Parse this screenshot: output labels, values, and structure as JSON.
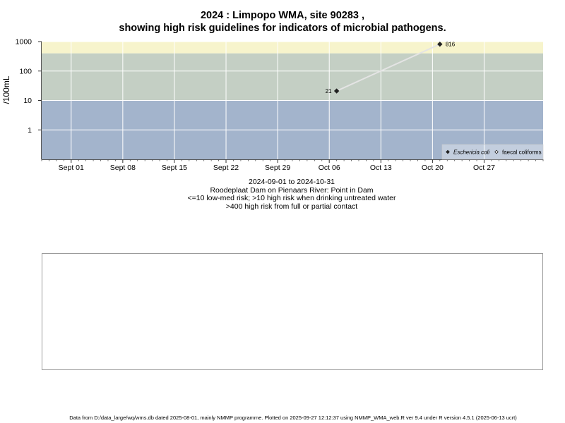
{
  "page": {
    "title_line1": "2024 : Limpopo WMA, site 90283 ,",
    "title_line2": "showing high risk guidelines for indicators of microbial pathogens.",
    "caption": [
      "2024-09-01 to 2024-10-31",
      "Roodeplaat Dam on Pienaars River: Point in Dam",
      "<=10 low-med risk; >10 high risk when drinking untreated water",
      ">400 high risk from full or partial contact"
    ],
    "footer": "Data from D:/data_large/wq/wms.db dated 2025-08-01, mainly NMMP programme. Plotted on 2025-09-27 12:12:37 using NMMP_WMA_web.R ver 9.4 under R version 4.5.1 (2025-06-13 ucrt)"
  },
  "chart_data": [
    {
      "type": "scatter",
      "ylabel": "/100mL",
      "y_scale": "log",
      "ylim": [
        0.1,
        1000
      ],
      "y_ticks": [
        1,
        10,
        100,
        1000
      ],
      "y_tick_labels": [
        "1",
        "10",
        "100",
        "1000"
      ],
      "xlim": [
        "2024-08-28",
        "2024-11-04"
      ],
      "x_ticks": [
        "2024-09-01",
        "2024-09-08",
        "2024-09-15",
        "2024-09-22",
        "2024-09-29",
        "2024-10-06",
        "2024-10-13",
        "2024-10-20",
        "2024-10-27"
      ],
      "x_tick_labels": [
        "Sept 01",
        "Sept 08",
        "Sept 15",
        "Sept 22",
        "Sept 29",
        "Oct 06",
        "Oct 13",
        "Oct 20",
        "Oct 27"
      ],
      "grid": true,
      "bands": [
        {
          "from": 0.1,
          "to": 10,
          "color": "#a3b4cc"
        },
        {
          "from": 10,
          "to": 400,
          "color": "#c4cfc4"
        },
        {
          "from": 400,
          "to": 1000,
          "color": "#f7f4cc"
        }
      ],
      "series": [
        {
          "name": "Eschericia coli",
          "marker": "filled-diamond",
          "color": "#222222",
          "points": [
            {
              "x": "2024-10-07",
              "y": 21,
              "label": "21"
            },
            {
              "x": "2024-10-21",
              "y": 816,
              "label": "816"
            }
          ]
        },
        {
          "name": "faecal coliforms",
          "marker": "open-diamond",
          "color": "#222222",
          "points": []
        }
      ],
      "legend_position": "bottom-right"
    },
    {
      "type": "scatter",
      "empty": true,
      "series": []
    }
  ]
}
